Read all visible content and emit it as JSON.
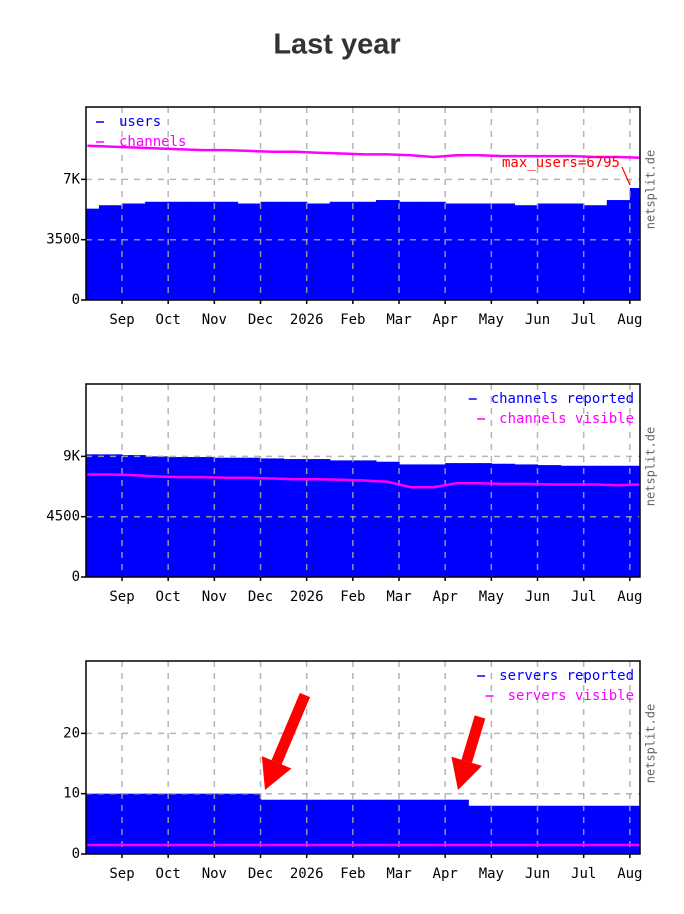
{
  "title": "Last year",
  "chart_data": [
    {
      "type": "area",
      "legend": "upper left",
      "watermark": "netsplit.de",
      "annotation": "max_users=6795",
      "categories": [
        null,
        null,
        "Sep",
        null,
        "Oct",
        null,
        "Nov",
        null,
        "Dec",
        null,
        "2026",
        null,
        "Feb",
        null,
        "Mar",
        null,
        "Apr",
        null,
        "May",
        null,
        "Jun",
        null,
        "Jul",
        null,
        "Aug"
      ],
      "ylim": [
        0,
        11200
      ],
      "yticks": [
        0,
        3500,
        {
          "value": 7000,
          "label": "7K"
        }
      ],
      "grid": true,
      "series": [
        {
          "name": "users",
          "color": "#0000ff",
          "style": "area",
          "values": [
            5300,
            5500,
            5600,
            5700,
            5700,
            5700,
            5700,
            5600,
            5700,
            5700,
            5600,
            5700,
            5700,
            5800,
            5700,
            5700,
            5600,
            5600,
            5600,
            5500,
            5600,
            5600,
            5500,
            5800,
            6500
          ]
        },
        {
          "name": "channels",
          "color": "#ff00ff",
          "style": "line",
          "values": [
            8950,
            8900,
            8850,
            8800,
            8750,
            8700,
            8700,
            8650,
            8600,
            8600,
            8550,
            8500,
            8450,
            8450,
            8400,
            8300,
            8400,
            8400,
            8350,
            8350,
            8350,
            8350,
            8300,
            8300,
            8250
          ]
        }
      ]
    },
    {
      "type": "area",
      "legend": "upper right",
      "watermark": "netsplit.de",
      "categories": [
        null,
        null,
        "Sep",
        null,
        "Oct",
        null,
        "Nov",
        null,
        "Dec",
        null,
        "2026",
        null,
        "Feb",
        null,
        "Mar",
        null,
        "Apr",
        null,
        "May",
        null,
        "Jun",
        null,
        "Jul",
        null,
        "Aug"
      ],
      "ylim": [
        0,
        14400
      ],
      "yticks": [
        0,
        4500,
        {
          "value": 9000,
          "label": "9K"
        }
      ],
      "grid": true,
      "series": [
        {
          "name": "channels reported",
          "color": "#0000ff",
          "style": "area",
          "values": [
            9150,
            9150,
            9100,
            9000,
            8950,
            8950,
            8900,
            8900,
            8850,
            8800,
            8800,
            8700,
            8700,
            8600,
            8400,
            8400,
            8500,
            8500,
            8450,
            8400,
            8350,
            8300,
            8300,
            8300,
            8300
          ]
        },
        {
          "name": "channels visible",
          "color": "#ff00ff",
          "style": "line",
          "values": [
            7650,
            7650,
            7600,
            7500,
            7450,
            7450,
            7400,
            7400,
            7350,
            7300,
            7300,
            7250,
            7200,
            7100,
            6700,
            6700,
            7000,
            7000,
            6950,
            6950,
            6900,
            6900,
            6900,
            6850,
            6900
          ]
        }
      ]
    },
    {
      "type": "area",
      "legend": "upper right",
      "watermark": "netsplit.de",
      "categories": [
        null,
        null,
        "Sep",
        null,
        "Oct",
        null,
        "Nov",
        null,
        "Dec",
        null,
        "2026",
        null,
        "Feb",
        null,
        "Mar",
        null,
        "Apr",
        null,
        "May",
        null,
        "Jun",
        null,
        "Jul",
        null,
        "Aug"
      ],
      "ylim": [
        0,
        32
      ],
      "yticks": [
        0,
        10,
        20
      ],
      "grid": true,
      "series": [
        {
          "name": "servers reported",
          "color": "#0000ff",
          "style": "area",
          "values": [
            10,
            10,
            10,
            10,
            10,
            10,
            10,
            10,
            9,
            9,
            9,
            9,
            9,
            9,
            9,
            9,
            9,
            8,
            8,
            8,
            8,
            8,
            8,
            8,
            8
          ]
        },
        {
          "name": "servers visible",
          "color": "#ff00ff",
          "style": "line",
          "values": [
            1.5,
            1.5,
            1.5,
            1.5,
            1.5,
            1.5,
            1.5,
            1.5,
            1.5,
            1.5,
            1.5,
            1.5,
            1.5,
            1.5,
            1.5,
            1.5,
            1.5,
            1.5,
            1.5,
            1.5,
            1.5,
            1.5,
            1.5,
            1.5,
            1.5
          ]
        }
      ]
    }
  ]
}
